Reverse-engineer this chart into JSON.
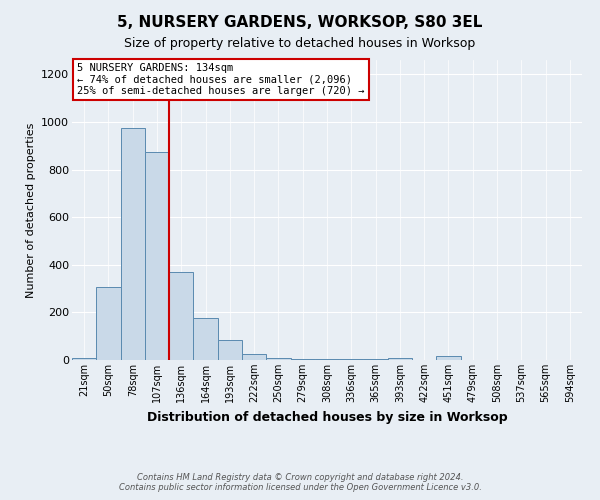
{
  "title": "5, NURSERY GARDENS, WORKSOP, S80 3EL",
  "subtitle": "Size of property relative to detached houses in Worksop",
  "xlabel": "Distribution of detached houses by size in Worksop",
  "ylabel": "Number of detached properties",
  "footnote1": "Contains HM Land Registry data © Crown copyright and database right 2024.",
  "footnote2": "Contains public sector information licensed under the Open Government Licence v3.0.",
  "categories": [
    "21sqm",
    "50sqm",
    "78sqm",
    "107sqm",
    "136sqm",
    "164sqm",
    "193sqm",
    "222sqm",
    "250sqm",
    "279sqm",
    "308sqm",
    "336sqm",
    "365sqm",
    "393sqm",
    "422sqm",
    "451sqm",
    "479sqm",
    "508sqm",
    "537sqm",
    "565sqm",
    "594sqm"
  ],
  "values": [
    10,
    305,
    975,
    875,
    370,
    175,
    85,
    25,
    10,
    5,
    5,
    5,
    5,
    10,
    0,
    15,
    0,
    0,
    0,
    0,
    0
  ],
  "bar_color": "#c9d9e8",
  "bar_edge_color": "#5a8ab0",
  "vline_x_index": 4,
  "vline_color": "#cc0000",
  "annotation_title": "5 NURSERY GARDENS: 134sqm",
  "annotation_line1": "← 74% of detached houses are smaller (2,096)",
  "annotation_line2": "25% of semi-detached houses are larger (720) →",
  "annotation_box_color": "#ffffff",
  "annotation_box_edge": "#cc0000",
  "ylim": [
    0,
    1260
  ],
  "yticks": [
    0,
    200,
    400,
    600,
    800,
    1000,
    1200
  ],
  "background_color": "#e8eef4",
  "plot_bg_color": "#e8eef4",
  "figsize": [
    6.0,
    5.0
  ],
  "dpi": 100
}
